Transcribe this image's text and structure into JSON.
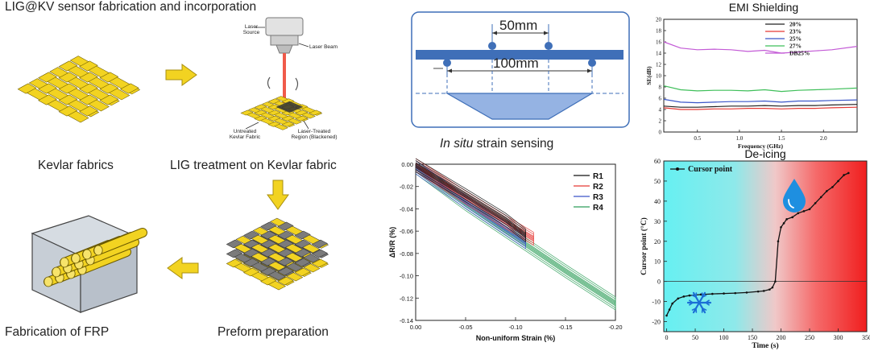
{
  "left": {
    "title": "LIG@KV sensor fabrication and incorporation",
    "kevlar_label": "Kevlar fabrics",
    "lig_label": "LIG treatment on Kevlar fabric",
    "preform_label": "Preform preparation",
    "frp_label": "Fabrication of FRP",
    "laser": {
      "source": "Laser Source",
      "beam": "Laser Beam",
      "untreated": "Untreated Kevlar Fabric",
      "treated": "Laser-Treated Region (Blackened)"
    }
  },
  "insitu": {
    "top_span": "50mm",
    "bottom_span": "100mm",
    "caption_italic": "In situ",
    "caption_rest": " strain sensing"
  },
  "colors": {
    "kevlar_yellow": "#f2d321",
    "fabric_gray": "#7b7b7b",
    "arrow_yellow": "#f2d321",
    "beam_blue": "#3f6fb8",
    "plate_blue": "#95b3e3",
    "laser_red": "#f05a4a"
  },
  "chart_data": [
    {
      "type": "line",
      "title": "EMI Shielding",
      "xlabel": "Frequency (GHz)",
      "ylabel": "SE(dB)",
      "xlim": [
        0.1,
        2.4
      ],
      "ylim": [
        0,
        20
      ],
      "xticks": [
        "0.5",
        "1.0",
        "1.5",
        "2.0"
      ],
      "yticks": [
        "0",
        "2",
        "4",
        "6",
        "8",
        "10",
        "12",
        "14",
        "16",
        "18",
        "20"
      ],
      "legend_position": "top-right",
      "x": [
        0.1,
        0.3,
        0.5,
        0.7,
        0.9,
        1.1,
        1.3,
        1.5,
        1.7,
        1.9,
        2.1,
        2.4
      ],
      "series": [
        {
          "name": "20%",
          "color": "#222222",
          "values": [
            4.6,
            4.4,
            4.4,
            4.5,
            4.6,
            4.6,
            4.7,
            4.6,
            4.7,
            4.7,
            4.8,
            4.9
          ]
        },
        {
          "name": "23%",
          "color": "#e53935",
          "values": [
            4.3,
            4.0,
            4.0,
            4.1,
            4.1,
            4.2,
            4.2,
            4.1,
            4.2,
            4.2,
            4.3,
            4.4
          ]
        },
        {
          "name": "25%",
          "color": "#3a55c8",
          "values": [
            5.8,
            5.3,
            5.2,
            5.3,
            5.4,
            5.4,
            5.5,
            5.3,
            5.5,
            5.5,
            5.6,
            5.7
          ]
        },
        {
          "name": "27%",
          "color": "#3fbf5a",
          "values": [
            8.2,
            7.5,
            7.3,
            7.4,
            7.4,
            7.3,
            7.5,
            7.2,
            7.4,
            7.5,
            7.6,
            7.8
          ]
        },
        {
          "name": "DB25%",
          "color": "#c35ad6",
          "values": [
            16.0,
            14.9,
            14.6,
            14.7,
            14.6,
            14.3,
            14.5,
            14.0,
            14.2,
            14.4,
            14.6,
            15.2
          ]
        }
      ]
    },
    {
      "type": "line",
      "xlabel": "Non-uniform Strain (%)",
      "ylabel": "ΔR/R (%)",
      "xlim": [
        0.0,
        -0.2
      ],
      "ylim": [
        -0.14,
        0.0
      ],
      "xticks": [
        "0.00",
        "-0.05",
        "-0.10",
        "-0.15",
        "-0.20"
      ],
      "yticks": [
        "0.00",
        "-0.02",
        "-0.04",
        "-0.06",
        "-0.08",
        "-0.10",
        "-0.12",
        "-0.14"
      ],
      "legend_position": "top-right",
      "series": [
        {
          "name": "R1",
          "color": "#111111",
          "x": [
            0.0,
            -0.05,
            -0.09,
            -0.11
          ],
          "values": [
            -0.003,
            -0.03,
            -0.052,
            -0.066
          ]
        },
        {
          "name": "R2",
          "color": "#e53935",
          "x": [
            0.0,
            -0.05,
            -0.09,
            -0.118
          ],
          "values": [
            -0.003,
            -0.032,
            -0.054,
            -0.069
          ]
        },
        {
          "name": "R3",
          "color": "#3a55c8",
          "x": [
            0.0,
            -0.05,
            -0.09,
            -0.11
          ],
          "values": [
            -0.005,
            -0.036,
            -0.06,
            -0.072
          ]
        },
        {
          "name": "R4",
          "color": "#2f9e5a",
          "x": [
            0.0,
            -0.05,
            -0.1,
            -0.15,
            -0.2
          ],
          "values": [
            -0.005,
            -0.038,
            -0.068,
            -0.098,
            -0.127
          ]
        }
      ]
    },
    {
      "type": "line",
      "title": "De-icing",
      "xlabel": "Time (s)",
      "ylabel": "Cursor point (°C)",
      "xlim": [
        -5,
        350
      ],
      "ylim": [
        -25,
        60
      ],
      "xticks": [
        "0",
        "50",
        "100",
        "150",
        "200",
        "250",
        "300",
        "350"
      ],
      "yticks": [
        "-20",
        "-10",
        "0",
        "10",
        "20",
        "30",
        "40",
        "50",
        "60"
      ],
      "legend_position": "top-left",
      "reference_line_y": 0,
      "series": [
        {
          "name": "Cursor point",
          "color": "#111111",
          "x": [
            0,
            5,
            10,
            20,
            30,
            40,
            60,
            80,
            100,
            120,
            140,
            160,
            170,
            180,
            185,
            190,
            195,
            200,
            205,
            210,
            220,
            230,
            240,
            250,
            260,
            270,
            280,
            290,
            300,
            310,
            318
          ],
          "values": [
            -17,
            -14,
            -11,
            -8.5,
            -7.5,
            -7,
            -6.5,
            -6.2,
            -6,
            -5.8,
            -5.5,
            -5,
            -4.7,
            -4,
            -3,
            0,
            20,
            27,
            29,
            31,
            32,
            34,
            35,
            36,
            39,
            42,
            45,
            47,
            50,
            53,
            54
          ]
        }
      ]
    }
  ]
}
